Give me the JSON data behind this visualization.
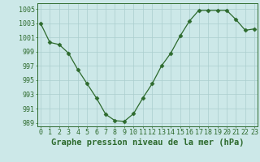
{
  "x": [
    0,
    1,
    2,
    3,
    4,
    5,
    6,
    7,
    8,
    9,
    10,
    11,
    12,
    13,
    14,
    15,
    16,
    17,
    18,
    19,
    20,
    21,
    22,
    23
  ],
  "y": [
    1003.0,
    1000.3,
    1000.0,
    998.8,
    996.5,
    994.5,
    992.5,
    990.2,
    989.3,
    989.2,
    990.3,
    992.5,
    994.5,
    997.0,
    998.8,
    1001.2,
    1003.3,
    1004.8,
    1004.8,
    1004.8,
    1004.8,
    1003.5,
    1002.0,
    1002.2
  ],
  "xlim": [
    -0.3,
    23.3
  ],
  "ylim": [
    988.5,
    1005.8
  ],
  "yticks": [
    989,
    991,
    993,
    995,
    997,
    999,
    1001,
    1003,
    1005
  ],
  "xticks": [
    0,
    1,
    2,
    3,
    4,
    5,
    6,
    7,
    8,
    9,
    10,
    11,
    12,
    13,
    14,
    15,
    16,
    17,
    18,
    19,
    20,
    21,
    22,
    23
  ],
  "xlabel": "Graphe pression niveau de la mer (hPa)",
  "line_color": "#2d6a2d",
  "marker": "D",
  "marker_size": 2.5,
  "bg_color": "#cce8e8",
  "grid_color": "#aacece",
  "axis_fontsize": 6.0,
  "xlabel_fontsize": 7.5
}
